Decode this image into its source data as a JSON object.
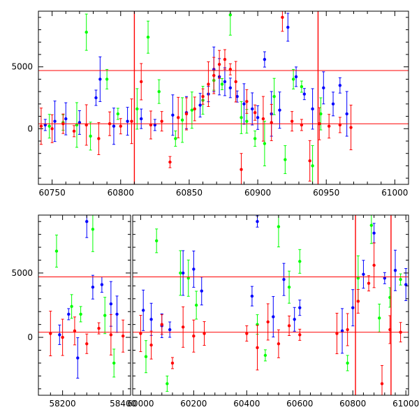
{
  "chart_data": [
    {
      "type": "scatter",
      "title": "",
      "xlabel": "",
      "ylabel": "",
      "xlim": [
        60740,
        61010
      ],
      "ylim": [
        -4500,
        9500
      ],
      "x_ticks": [
        60750,
        60800,
        60850,
        60900,
        60950,
        61000
      ],
      "y_ticks": [
        0,
        5000
      ],
      "hlines": [
        4700,
        400
      ],
      "vlines": [
        60810,
        60944
      ],
      "series": [
        {
          "color": "#0000ff",
          "points": [
            [
              60745,
              300
            ],
            [
              60752,
              600
            ],
            [
              60760,
              800
            ],
            [
              60770,
              500
            ],
            [
              60782,
              2500
            ],
            [
              60785,
              4000
            ],
            [
              60795,
              200
            ],
            [
              60805,
              600
            ],
            [
              60815,
              800
            ],
            [
              60825,
              300
            ],
            [
              60838,
              1100
            ],
            [
              60848,
              1300
            ],
            [
              60858,
              1900
            ],
            [
              60864,
              2800
            ],
            [
              60868,
              4800
            ],
            [
              60872,
              4200
            ],
            [
              60876,
              3800
            ],
            [
              60880,
              3300
            ],
            [
              60885,
              2600
            ],
            [
              60890,
              2000
            ],
            [
              60896,
              1600
            ],
            [
              60900,
              900
            ],
            [
              60905,
              5600
            ],
            [
              60910,
              1200
            ],
            [
              60916,
              1500
            ],
            [
              60922,
              8200
            ],
            [
              60928,
              4200
            ],
            [
              60934,
              2800
            ],
            [
              60940,
              1600
            ],
            [
              60948,
              3300
            ],
            [
              60955,
              2000
            ],
            [
              60960,
              3500
            ],
            [
              60965,
              1200
            ]
          ]
        },
        {
          "color": "#00ff00",
          "points": [
            [
              60748,
              200
            ],
            [
              60758,
              500
            ],
            [
              60768,
              300
            ],
            [
              60775,
              7800
            ],
            [
              60778,
              -600
            ],
            [
              60790,
              4000
            ],
            [
              60798,
              1200
            ],
            [
              60812,
              1600
            ],
            [
              60820,
              7400
            ],
            [
              60828,
              3000
            ],
            [
              60840,
              -800
            ],
            [
              60845,
              700
            ],
            [
              60852,
              1500
            ],
            [
              60860,
              2300
            ],
            [
              60868,
              3900
            ],
            [
              60874,
              3600
            ],
            [
              60880,
              9200
            ],
            [
              60888,
              900
            ],
            [
              60892,
              600
            ],
            [
              60898,
              -800
            ],
            [
              60905,
              -1200
            ],
            [
              60912,
              2600
            ],
            [
              60920,
              -2500
            ],
            [
              60926,
              4000
            ],
            [
              60932,
              3400
            ],
            [
              60940,
              -3000
            ],
            [
              60946,
              1200
            ]
          ]
        },
        {
          "color": "#ff0000",
          "points": [
            [
              60742,
              200
            ],
            [
              60750,
              0
            ],
            [
              60758,
              400
            ],
            [
              60766,
              -200
            ],
            [
              60775,
              300
            ],
            [
              60784,
              -800
            ],
            [
              60792,
              400
            ],
            [
              60800,
              200
            ],
            [
              60808,
              600
            ],
            [
              60815,
              3800
            ],
            [
              60822,
              300
            ],
            [
              60830,
              600
            ],
            [
              60836,
              -2700
            ],
            [
              60842,
              900
            ],
            [
              60848,
              1200
            ],
            [
              60854,
              1600
            ],
            [
              60860,
              2600
            ],
            [
              60864,
              3600
            ],
            [
              60868,
              4300
            ],
            [
              60872,
              5200
            ],
            [
              60876,
              5600
            ],
            [
              60880,
              4800
            ],
            [
              60884,
              3800
            ],
            [
              60888,
              -3300
            ],
            [
              60892,
              2200
            ],
            [
              60898,
              1300
            ],
            [
              60904,
              800
            ],
            [
              60910,
              500
            ],
            [
              60918,
              9000
            ],
            [
              60925,
              600
            ],
            [
              60932,
              300
            ],
            [
              60938,
              -2600
            ],
            [
              60945,
              400
            ],
            [
              60952,
              200
            ],
            [
              60960,
              300
            ],
            [
              60968,
              100
            ]
          ]
        }
      ]
    },
    {
      "type": "scatter",
      "title": "",
      "xlabel": "",
      "ylabel": "",
      "ylim": [
        -4500,
        9500
      ],
      "y_ticks": [
        0,
        5000
      ],
      "hlines": [
        4700,
        400
      ],
      "panels": [
        {
          "xlim": [
            58120,
            58425
          ],
          "x_ticks": [
            58200,
            58400
          ]
        },
        {
          "xlim": [
            59970,
            61010
          ],
          "x_ticks": [
            60000,
            60200,
            60400,
            60600,
            60800,
            61000
          ]
        }
      ],
      "vlines": [
        60810,
        60944
      ],
      "series": [
        {
          "color": "#0000ff",
          "points": [
            [
              58190,
              200
            ],
            [
              58220,
              1800
            ],
            [
              58250,
              -1600
            ],
            [
              58280,
              9000
            ],
            [
              58300,
              3900
            ],
            [
              58330,
              4100
            ],
            [
              58360,
              2600
            ],
            [
              58380,
              1800
            ],
            [
              60010,
              2100
            ],
            [
              60040,
              1400
            ],
            [
              60080,
              900
            ],
            [
              60110,
              600
            ],
            [
              60160,
              5000
            ],
            [
              60200,
              5300
            ],
            [
              60230,
              3600
            ],
            [
              60420,
              3200
            ],
            [
              60440,
              9000
            ],
            [
              60500,
              1600
            ],
            [
              60540,
              4500
            ],
            [
              60580,
              1400
            ],
            [
              60600,
              2300
            ],
            [
              60760,
              500
            ],
            [
              60800,
              2300
            ],
            [
              60840,
              4900
            ],
            [
              60880,
              8100
            ],
            [
              60920,
              4600
            ],
            [
              60960,
              5200
            ],
            [
              61000,
              4100
            ]
          ]
        },
        {
          "color": "#00ff00",
          "points": [
            [
              58180,
              6700
            ],
            [
              58230,
              2400
            ],
            [
              58260,
              1800
            ],
            [
              58300,
              8400
            ],
            [
              58340,
              1700
            ],
            [
              58370,
              -2000
            ],
            [
              60020,
              -1500
            ],
            [
              60060,
              7500
            ],
            [
              60100,
              -3600
            ],
            [
              60150,
              5000
            ],
            [
              60180,
              4600
            ],
            [
              60210,
              2500
            ],
            [
              60440,
              1000
            ],
            [
              60470,
              -1400
            ],
            [
              60520,
              8600
            ],
            [
              60560,
              3900
            ],
            [
              60600,
              5900
            ],
            [
              60780,
              -2000
            ],
            [
              60820,
              4600
            ],
            [
              60870,
              8700
            ],
            [
              60900,
              1500
            ],
            [
              60940,
              3100
            ],
            [
              60980,
              4500
            ]
          ]
        },
        {
          "color": "#ff0000",
          "points": [
            [
              58160,
              300
            ],
            [
              58200,
              0
            ],
            [
              58240,
              500
            ],
            [
              58280,
              -500
            ],
            [
              58320,
              700
            ],
            [
              58360,
              200
            ],
            [
              58400,
              100
            ],
            [
              60000,
              300
            ],
            [
              60040,
              -600
            ],
            [
              60080,
              1000
            ],
            [
              60120,
              -2000
            ],
            [
              60160,
              800
            ],
            [
              60200,
              100
            ],
            [
              60240,
              300
            ],
            [
              60400,
              300
            ],
            [
              60440,
              -800
            ],
            [
              60480,
              1200
            ],
            [
              60520,
              -500
            ],
            [
              60560,
              900
            ],
            [
              60600,
              200
            ],
            [
              60740,
              300
            ],
            [
              60780,
              600
            ],
            [
              60820,
              2800
            ],
            [
              60860,
              4200
            ],
            [
              60880,
              5600
            ],
            [
              60910,
              -3600
            ],
            [
              60940,
              600
            ],
            [
              60980,
              400
            ]
          ]
        }
      ]
    }
  ]
}
